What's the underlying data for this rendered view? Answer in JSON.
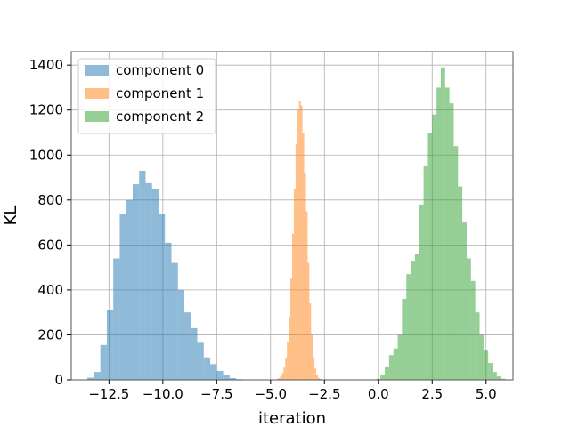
{
  "chart_data": {
    "type": "bar",
    "xlabel": "iteration",
    "ylabel": "KL",
    "xlim": [
      -14.25,
      6.25
    ],
    "ylim": [
      0,
      1460
    ],
    "xticks": [
      -12.5,
      -10.0,
      -7.5,
      -5.0,
      -2.5,
      0.0,
      2.5,
      5.0
    ],
    "xtick_labels": [
      "−12.5",
      "−10.0",
      "−7.5",
      "−5.0",
      "−2.5",
      "0.0",
      "2.5",
      "5.0"
    ],
    "yticks": [
      0,
      200,
      400,
      600,
      800,
      1000,
      1200,
      1400
    ],
    "ytick_labels": [
      "0",
      "200",
      "400",
      "600",
      "800",
      "1000",
      "1200",
      "1400"
    ],
    "grid": true,
    "legend_position": "top-left",
    "series": [
      {
        "name": "component 0",
        "color": "#1f77b4",
        "bin_start": -13.5,
        "bin_width": 0.3,
        "values": [
          10,
          35,
          155,
          310,
          540,
          740,
          800,
          870,
          930,
          875,
          850,
          740,
          610,
          520,
          400,
          300,
          230,
          165,
          100,
          70,
          40,
          20,
          8,
          3,
          1
        ]
      },
      {
        "name": "component 1",
        "color": "#ff7f0e",
        "bin_start": -4.8,
        "bin_width": 0.08,
        "values": [
          2,
          4,
          8,
          15,
          30,
          55,
          100,
          170,
          280,
          450,
          650,
          850,
          1050,
          1200,
          1240,
          1220,
          1100,
          920,
          750,
          520,
          340,
          200,
          100,
          50,
          20,
          8,
          4
        ]
      },
      {
        "name": "component 2",
        "color": "#2ca02c",
        "bin_start": -0.3,
        "bin_width": 0.2,
        "values": [
          2,
          5,
          20,
          60,
          110,
          140,
          200,
          360,
          470,
          530,
          560,
          780,
          950,
          1100,
          1180,
          1300,
          1390,
          1300,
          1230,
          1040,
          860,
          700,
          540,
          440,
          300,
          200,
          130,
          75,
          35,
          15,
          5,
          2
        ]
      }
    ]
  }
}
